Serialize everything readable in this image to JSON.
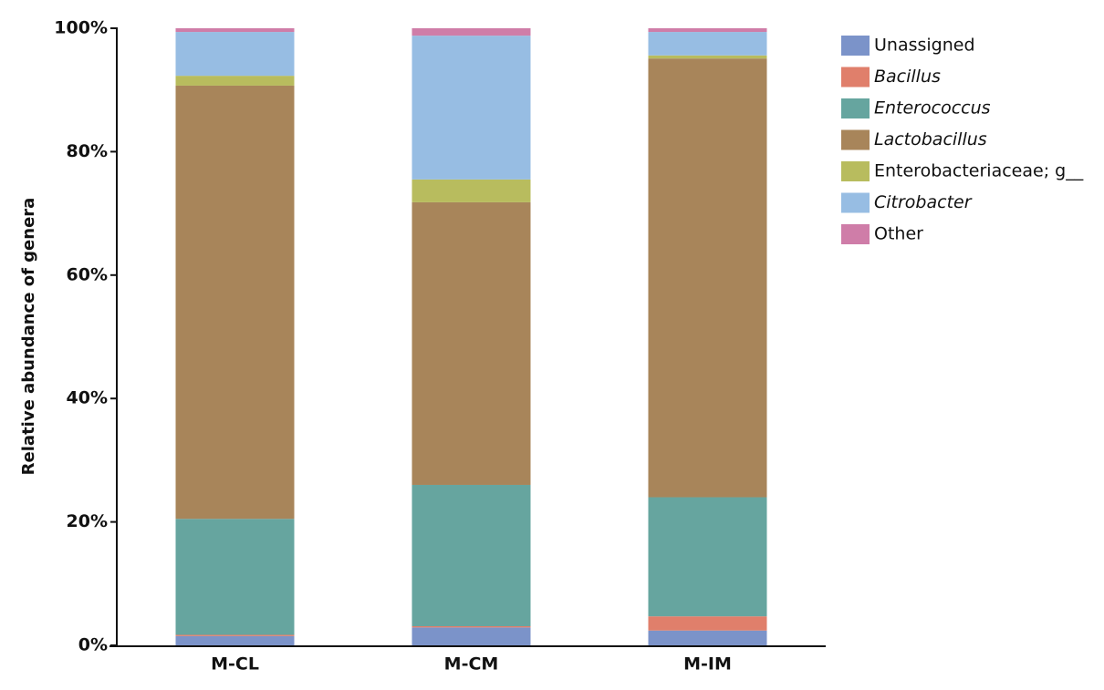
{
  "chart_data": {
    "type": "stacked_bar",
    "y_label": "Relative abundance of genera",
    "categories": [
      "M-CL",
      "M-CM",
      "M-IM"
    ],
    "series": [
      {
        "name": "Unassigned",
        "color": "#7b93c9",
        "italic": false,
        "values": [
          1.5,
          2.9,
          2.4
        ]
      },
      {
        "name": "Bacillus",
        "color": "#e07f6b",
        "italic": true,
        "values": [
          0.2,
          0.2,
          2.3
        ]
      },
      {
        "name": "Enterococcus",
        "color": "#66a59f",
        "italic": true,
        "values": [
          18.8,
          22.9,
          19.3
        ]
      },
      {
        "name": "Lactobacillus",
        "color": "#a8855a",
        "italic": true,
        "values": [
          70.2,
          45.8,
          71.1
        ]
      },
      {
        "name": "Enterobacteriaceae; g__",
        "color": "#b8bc5e",
        "italic": false,
        "values": [
          1.6,
          3.7,
          0.5
        ]
      },
      {
        "name": "Citrobacter",
        "color": "#97bde3",
        "italic": true,
        "values": [
          7.1,
          23.3,
          3.8
        ]
      },
      {
        "name": "Other",
        "color": "#cf7da8",
        "italic": false,
        "values": [
          0.6,
          1.2,
          0.6
        ]
      }
    ],
    "ylim": [
      0,
      100
    ],
    "yticks": [
      {
        "value": 0,
        "label": "0%"
      },
      {
        "value": 20,
        "label": "20%"
      },
      {
        "value": 40,
        "label": "40%"
      },
      {
        "value": 60,
        "label": "60%"
      },
      {
        "value": 80,
        "label": "80%"
      },
      {
        "value": 100,
        "label": "100%"
      }
    ],
    "grid": false,
    "legend": "right"
  }
}
